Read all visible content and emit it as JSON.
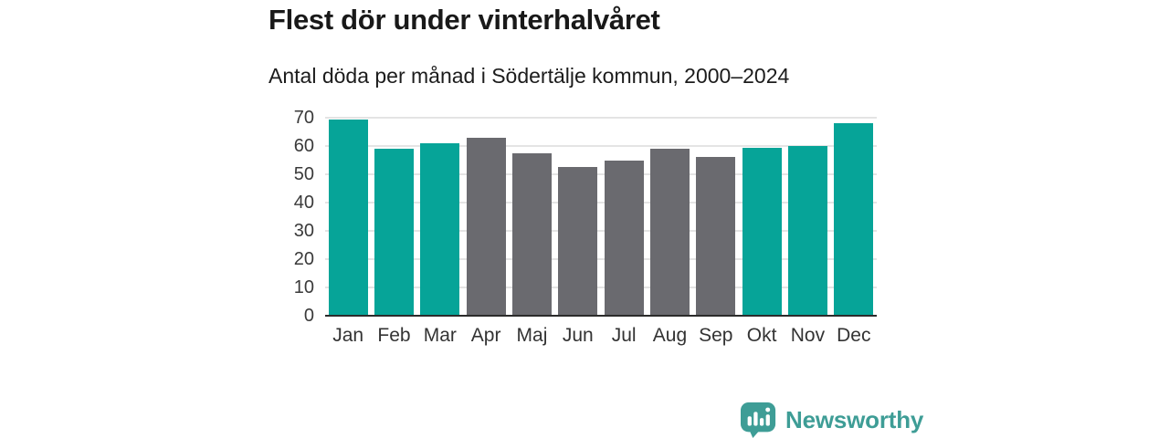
{
  "header": {
    "title": "Flest dör under vinterhalvåret",
    "subtitle": "Antal döda per månad i Södertälje kommun, 2000–2024"
  },
  "chart_data": {
    "type": "bar",
    "title": "Flest dör under vinterhalvåret",
    "subtitle": "Antal döda per månad i Södertälje kommun, 2000–2024",
    "categories": [
      "Jan",
      "Feb",
      "Mar",
      "Apr",
      "Maj",
      "Jun",
      "Jul",
      "Aug",
      "Sep",
      "Okt",
      "Nov",
      "Dec"
    ],
    "values": [
      69.5,
      59,
      61,
      63,
      57.5,
      52.5,
      55,
      59,
      56,
      59.5,
      60,
      68
    ],
    "bar_colors": [
      "#06a498",
      "#06a498",
      "#06a498",
      "#6a6a6f",
      "#6a6a6f",
      "#6a6a6f",
      "#6a6a6f",
      "#6a6a6f",
      "#6a6a6f",
      "#06a498",
      "#06a498",
      "#06a498"
    ],
    "xlabel": "",
    "ylabel": "",
    "ylim": [
      0,
      70
    ],
    "yticks": [
      0,
      10,
      20,
      30,
      40,
      50,
      60,
      70
    ],
    "grid": "horizontal",
    "legend": "none",
    "color_meaning": {
      "#06a498": "winter half-year months",
      "#6a6a6f": "summer half-year months"
    }
  },
  "branding": {
    "logo_text": "Newsworthy",
    "logo_color": "#3E9D96",
    "logo_icon": "bar-chart-speech-bubble-icon"
  }
}
